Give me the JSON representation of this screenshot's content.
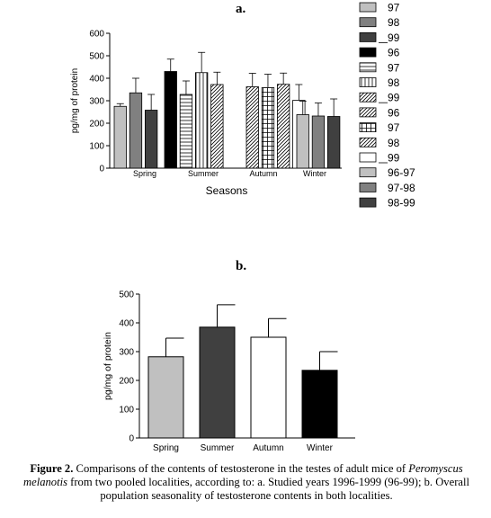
{
  "figure": {
    "caption_label": "Figure 2.",
    "caption_text_1": "Comparisons of the contents of testosterone in the testes of adult mice of",
    "caption_species": "Peromyscus melanotis",
    "caption_text_2": "from two pooled localities, according to: a. Studied years 1996-1999 (96-99); b. Overall population seasonality of testosterone contents in both localities."
  },
  "chart_data": [
    {
      "id": "a",
      "panel_label": "a.",
      "type": "bar",
      "ylabel": "pg/mg of protein",
      "xlabel": "Seasons",
      "ylim": [
        0,
        600
      ],
      "yticks": [
        0,
        100,
        200,
        300,
        400,
        500,
        600
      ],
      "categories": [
        "Spring",
        "Summer",
        "Autumn",
        "Winter"
      ],
      "grid": false,
      "legend_position": "right",
      "bars": [
        {
          "category": "Spring",
          "label": "97",
          "value": 275,
          "error": 12,
          "fill": "#c0c0c0",
          "pattern": "solid"
        },
        {
          "category": "Spring",
          "label": "98",
          "value": 335,
          "error": 65,
          "fill": "#808080",
          "pattern": "solid"
        },
        {
          "category": "Spring",
          "label": "99",
          "value": 258,
          "error": 70,
          "fill": "#404040",
          "pattern": "solid"
        },
        {
          "category": "Summer",
          "label": "96",
          "value": 430,
          "error": 55,
          "fill": "#000000",
          "pattern": "solid"
        },
        {
          "category": "Summer",
          "label": "97",
          "value": 328,
          "error": 60,
          "fill": "#ffffff",
          "pattern": "hlines"
        },
        {
          "category": "Summer",
          "label": "98",
          "value": 425,
          "error": 90,
          "fill": "#ffffff",
          "pattern": "vlines"
        },
        {
          "category": "Summer",
          "label": "99",
          "value": 372,
          "error": 55,
          "fill": "#ffffff",
          "pattern": "diag"
        },
        {
          "category": "Autumn",
          "label": "96",
          "value": 362,
          "error": 60,
          "fill": "#ffffff",
          "pattern": "diag"
        },
        {
          "category": "Autumn",
          "label": "97",
          "value": 358,
          "error": 60,
          "fill": "#ffffff",
          "pattern": "grid"
        },
        {
          "category": "Autumn",
          "label": "98",
          "value": 373,
          "error": 50,
          "fill": "#ffffff",
          "pattern": "diag"
        },
        {
          "category": "Autumn",
          "label": "99",
          "value": 302,
          "error": 70,
          "fill": "#ffffff",
          "pattern": "solid"
        },
        {
          "category": "Winter",
          "label": "96-97",
          "value": 238,
          "error": 60,
          "fill": "#c0c0c0",
          "pattern": "solid"
        },
        {
          "category": "Winter",
          "label": "97-98",
          "value": 232,
          "error": 58,
          "fill": "#808080",
          "pattern": "solid"
        },
        {
          "category": "Winter",
          "label": "98-99",
          "value": 230,
          "error": 78,
          "fill": "#404040",
          "pattern": "solid"
        }
      ],
      "legend": [
        {
          "label": "97",
          "fill": "#c0c0c0",
          "pattern": "solid"
        },
        {
          "label": "98",
          "fill": "#808080",
          "pattern": "solid"
        },
        {
          "label": "99",
          "fill": "#404040",
          "pattern": "solid"
        },
        {
          "label": "96",
          "fill": "#000000",
          "pattern": "solid"
        },
        {
          "label": "97",
          "fill": "#ffffff",
          "pattern": "hlines"
        },
        {
          "label": "98",
          "fill": "#ffffff",
          "pattern": "vlines"
        },
        {
          "label": "99",
          "fill": "#ffffff",
          "pattern": "diag"
        },
        {
          "label": "96",
          "fill": "#ffffff",
          "pattern": "diag"
        },
        {
          "label": "97",
          "fill": "#ffffff",
          "pattern": "grid"
        },
        {
          "label": "98",
          "fill": "#ffffff",
          "pattern": "diag"
        },
        {
          "label": "99",
          "fill": "#ffffff",
          "pattern": "solid"
        },
        {
          "label": "96-97",
          "fill": "#c0c0c0",
          "pattern": "solid"
        },
        {
          "label": "97-98",
          "fill": "#808080",
          "pattern": "solid"
        },
        {
          "label": "98-99",
          "fill": "#404040",
          "pattern": "solid"
        }
      ]
    },
    {
      "id": "b",
      "panel_label": "b.",
      "type": "bar",
      "ylabel": "pg/mg of protein",
      "xlabel": "",
      "ylim": [
        0,
        500
      ],
      "yticks": [
        0,
        100,
        200,
        300,
        400,
        500
      ],
      "categories": [
        "Spring",
        "Summer",
        "Autumn",
        "Winter"
      ],
      "grid": false,
      "values": [
        282,
        385,
        350,
        235
      ],
      "errors": [
        65,
        78,
        65,
        65
      ],
      "fills": [
        "#c0c0c0",
        "#404040",
        "#ffffff",
        "#000000"
      ]
    }
  ]
}
